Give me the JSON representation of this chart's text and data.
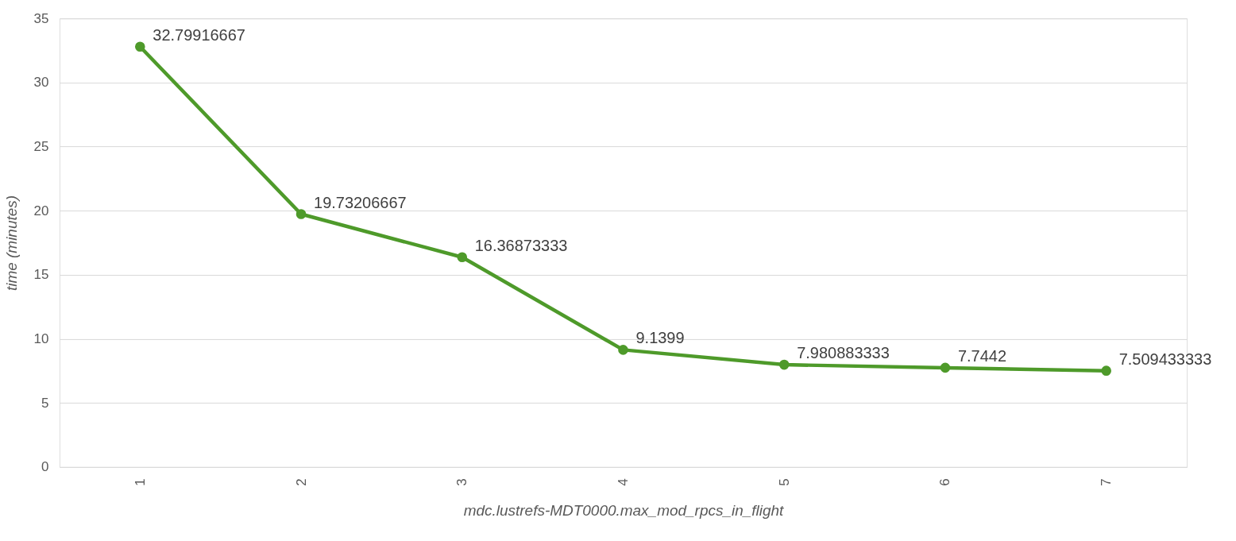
{
  "chart_data": {
    "type": "line",
    "xlabel": "mdc.lustrefs-MDT0000.max_mod_rpcs_in_flight",
    "ylabel": "time (minutes)",
    "categories": [
      "1",
      "2",
      "3",
      "4",
      "5",
      "6",
      "7"
    ],
    "series": [
      {
        "color": "#4e9a2a",
        "values": [
          32.79916667,
          19.73206667,
          16.36873333,
          9.1399,
          7.980883333,
          7.7442,
          7.509433333
        ]
      }
    ],
    "ylim": [
      0,
      35
    ],
    "yticks": [
      0,
      5,
      10,
      15,
      20,
      25,
      30,
      35
    ],
    "grid": "y",
    "marker": "circle",
    "data_labels": true
  }
}
